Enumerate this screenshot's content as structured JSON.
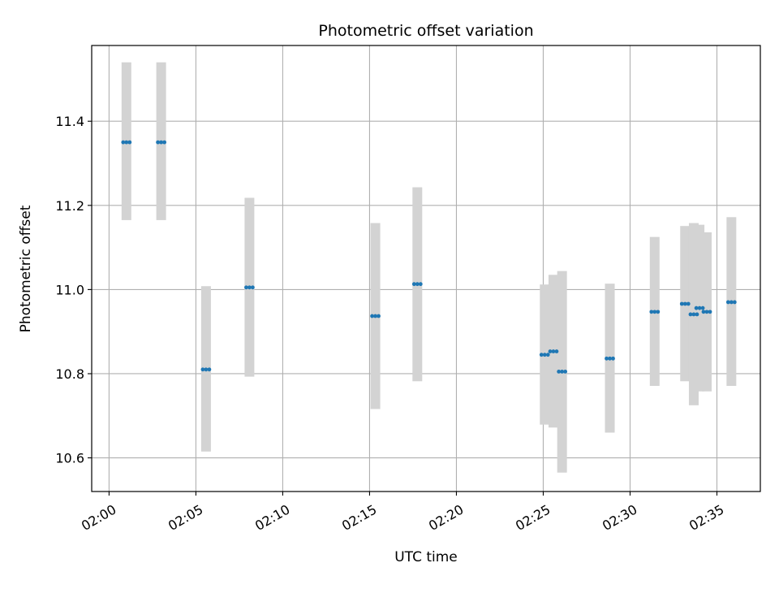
{
  "chart_data": {
    "type": "scatter",
    "title": "Photometric offset variation",
    "xlabel": "UTC time",
    "ylabel": "Photometric offset",
    "x_axis_kind": "time",
    "xlim": [
      "01:59:00",
      "02:37:30"
    ],
    "ylim": [
      10.52,
      11.58
    ],
    "x_ticks": [
      "02:00",
      "02:05",
      "02:10",
      "02:15",
      "02:20",
      "02:25",
      "02:30",
      "02:35"
    ],
    "y_ticks": [
      10.6,
      10.8,
      11.0,
      11.2,
      11.4
    ],
    "grid": true,
    "colors": {
      "marker": "#1f77b4",
      "error_band": "#d3d3d3",
      "grid": "#b0b0b0"
    },
    "series": [
      {
        "type": "points_with_error_bars",
        "points": [
          {
            "x": "02:01:00",
            "y": 11.35,
            "ymin": 11.165,
            "ymax": 11.54
          },
          {
            "x": "02:03:00",
            "y": 11.35,
            "ymin": 11.165,
            "ymax": 11.54
          },
          {
            "x": "02:05:35",
            "y": 10.81,
            "ymin": 10.615,
            "ymax": 11.008
          },
          {
            "x": "02:08:05",
            "y": 11.005,
            "ymin": 10.793,
            "ymax": 11.218
          },
          {
            "x": "02:15:20",
            "y": 10.937,
            "ymin": 10.716,
            "ymax": 11.158
          },
          {
            "x": "02:17:45",
            "y": 11.013,
            "ymin": 10.782,
            "ymax": 11.243
          },
          {
            "x": "02:25:05",
            "y": 10.845,
            "ymin": 10.679,
            "ymax": 11.012
          },
          {
            "x": "02:25:35",
            "y": 10.853,
            "ymin": 10.672,
            "ymax": 11.035
          },
          {
            "x": "02:26:05",
            "y": 10.805,
            "ymin": 10.565,
            "ymax": 11.044
          },
          {
            "x": "02:28:50",
            "y": 10.836,
            "ymin": 10.66,
            "ymax": 11.014
          },
          {
            "x": "02:31:25",
            "y": 10.947,
            "ymin": 10.771,
            "ymax": 11.125
          },
          {
            "x": "02:33:10",
            "y": 10.966,
            "ymin": 10.782,
            "ymax": 11.151
          },
          {
            "x": "02:33:40",
            "y": 10.941,
            "ymin": 10.725,
            "ymax": 11.158
          },
          {
            "x": "02:34:00",
            "y": 10.956,
            "ymin": 10.758,
            "ymax": 11.154
          },
          {
            "x": "02:34:25",
            "y": 10.947,
            "ymin": 10.758,
            "ymax": 11.136
          },
          {
            "x": "02:35:50",
            "y": 10.97,
            "ymin": 10.771,
            "ymax": 11.172
          }
        ]
      }
    ]
  }
}
